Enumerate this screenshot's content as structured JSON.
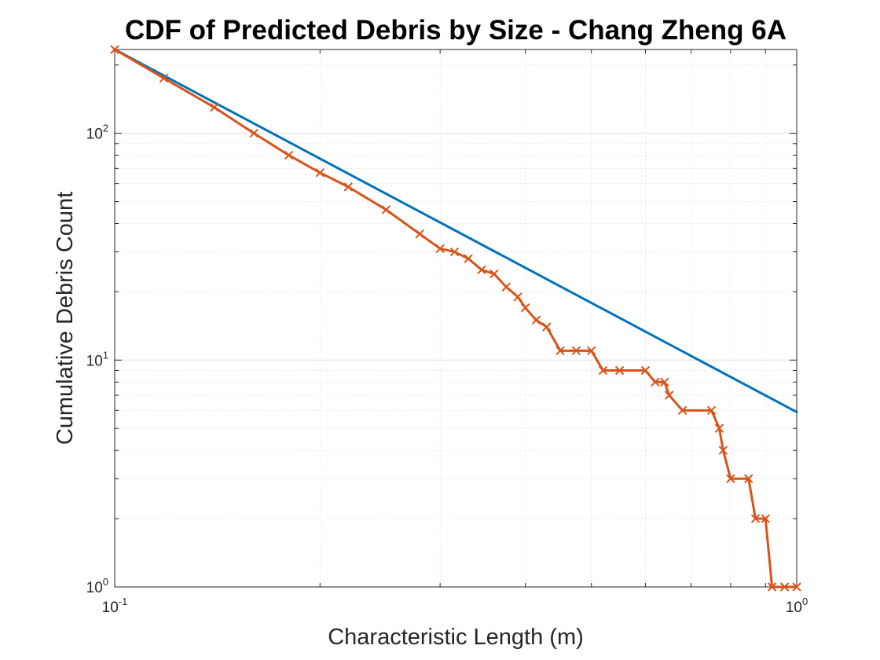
{
  "chart_data": {
    "type": "line",
    "title": "CDF of Predicted Debris by Size - Chang Zheng 6A",
    "xlabel": "Characteristic Length (m)",
    "ylabel": "Cumulative Debris Count",
    "xscale": "log",
    "yscale": "log",
    "xlim": [
      0.1,
      1
    ],
    "ylim": [
      1,
      234
    ],
    "grid": true,
    "x_ticks": [
      {
        "base": "10",
        "exp": "-1",
        "value": 0.1
      },
      {
        "base": "10",
        "exp": "0",
        "value": 1
      }
    ],
    "y_ticks": [
      {
        "base": "10",
        "exp": "0",
        "value": 1
      },
      {
        "base": "10",
        "exp": "1",
        "value": 10
      },
      {
        "base": "10",
        "exp": "2",
        "value": 100
      }
    ],
    "series": [
      {
        "color": "#0072BD",
        "marker": "none",
        "x": [
          0.1,
          1
        ],
        "y": [
          234,
          5.9
        ]
      },
      {
        "color": "#D95319",
        "marker": "x",
        "x": [
          0.1,
          0.118,
          0.14,
          0.16,
          0.18,
          0.2,
          0.22,
          0.25,
          0.28,
          0.3,
          0.315,
          0.33,
          0.345,
          0.36,
          0.375,
          0.39,
          0.4,
          0.415,
          0.43,
          0.45,
          0.475,
          0.5,
          0.52,
          0.55,
          0.6,
          0.62,
          0.64,
          0.65,
          0.68,
          0.75,
          0.77,
          0.78,
          0.8,
          0.85,
          0.87,
          0.9,
          0.92,
          0.96,
          1.0
        ],
        "y": [
          234,
          175,
          130,
          100,
          80,
          67,
          58,
          46,
          36,
          31,
          30,
          28,
          25,
          24,
          21,
          19,
          17,
          15,
          14,
          11,
          11,
          11,
          9,
          9,
          9,
          8,
          8,
          7,
          6,
          6,
          5,
          4,
          3,
          3,
          2,
          2,
          1,
          1,
          1
        ]
      }
    ]
  }
}
